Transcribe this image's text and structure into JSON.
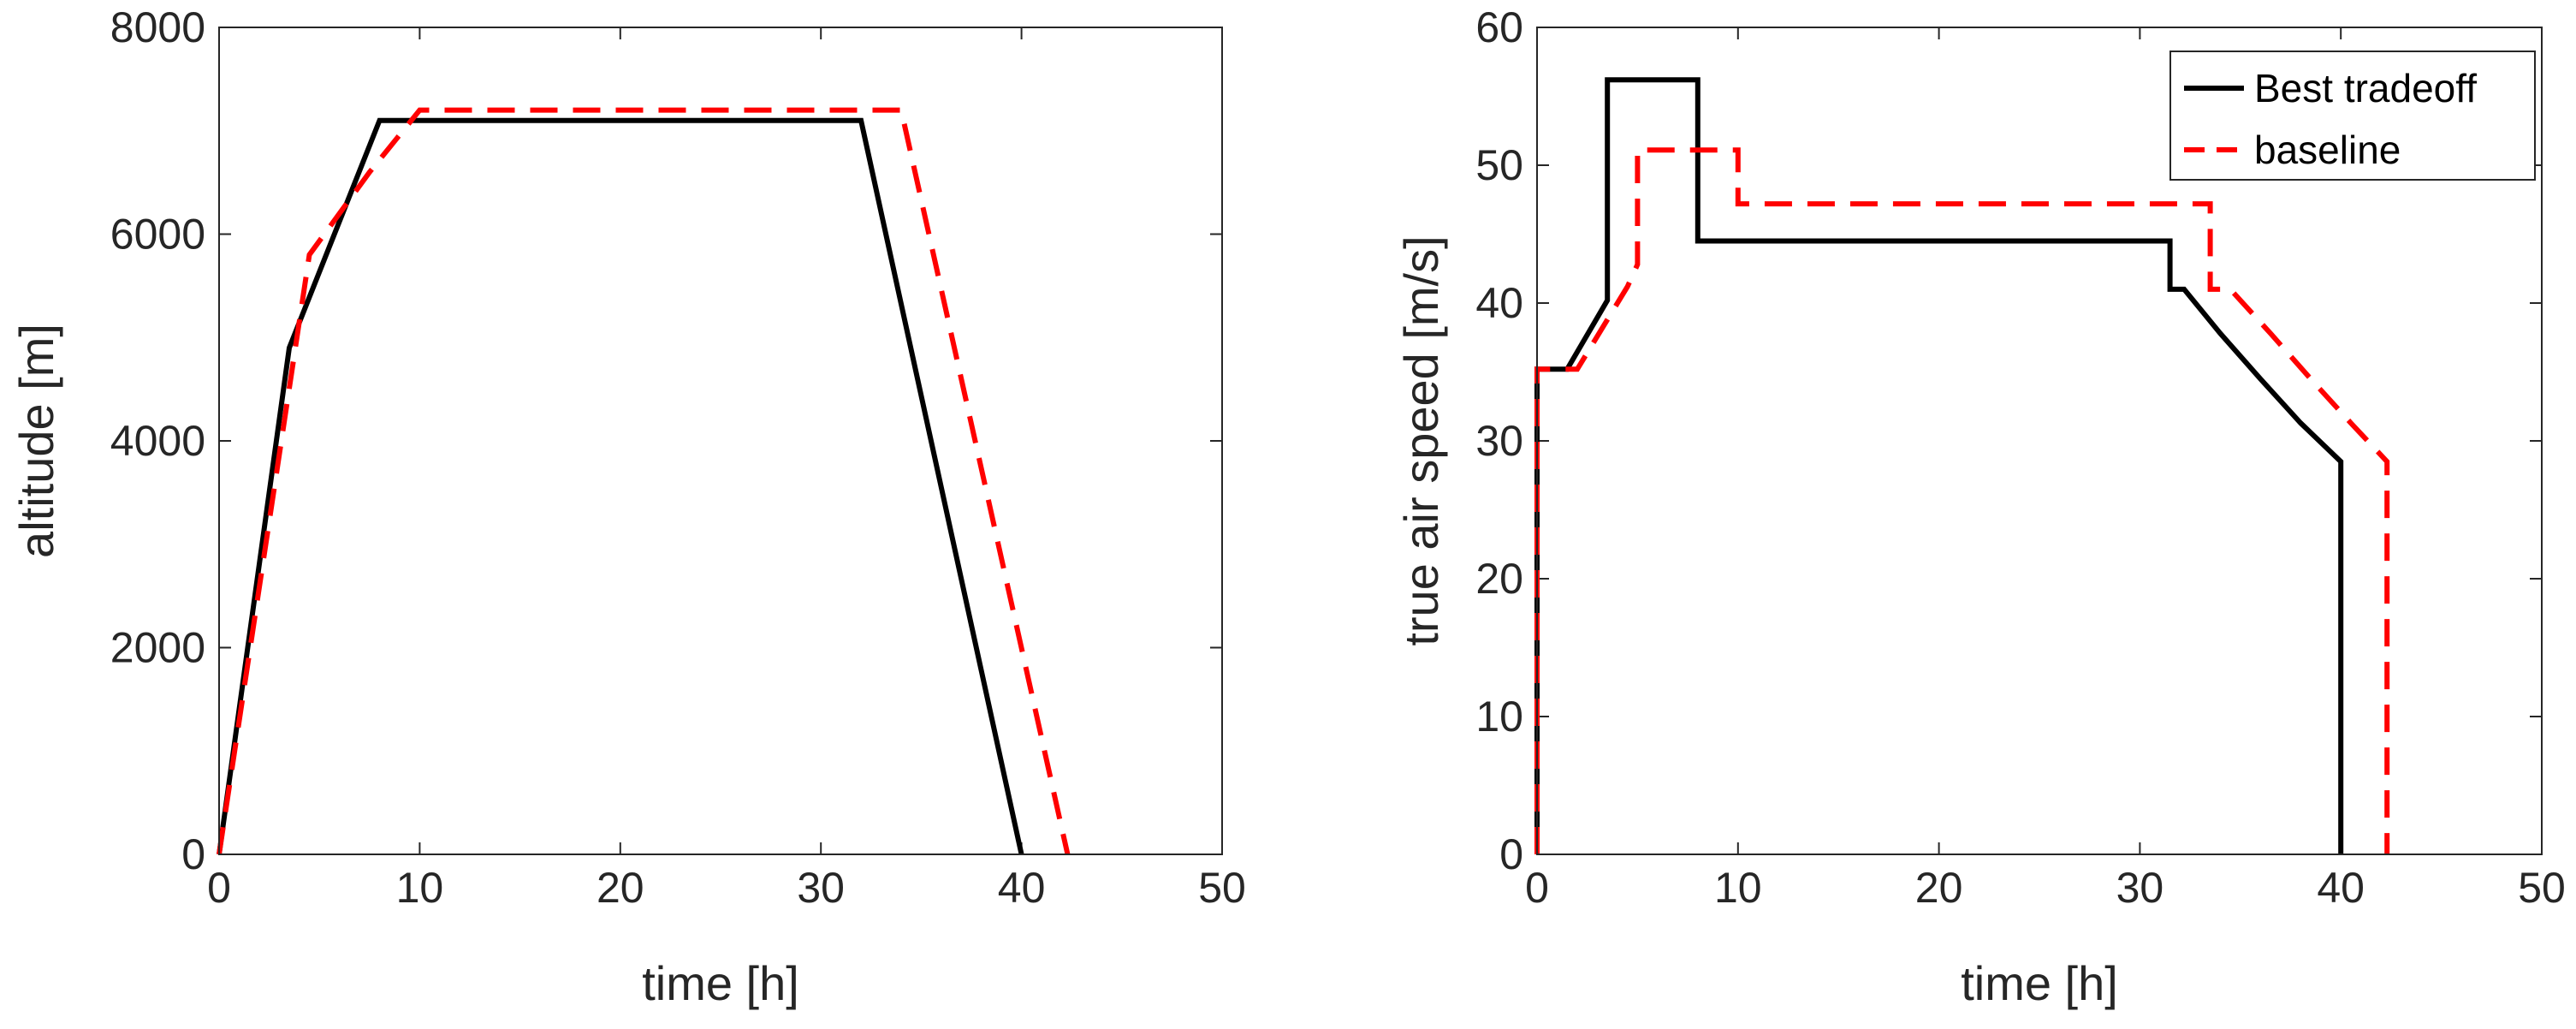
{
  "chart_data": [
    {
      "type": "line",
      "id": "altitude",
      "xlabel": "time [h]",
      "ylabel": "altitude [m]",
      "xlim": [
        0,
        50
      ],
      "ylim": [
        0,
        8000
      ],
      "xticks": [
        0,
        10,
        20,
        30,
        40,
        50
      ],
      "yticks": [
        0,
        2000,
        4000,
        6000,
        8000
      ],
      "series": [
        {
          "name": "Best tradeoff",
          "color": "#000000",
          "dash": "solid",
          "x": [
            0,
            3.5,
            8,
            32,
            40
          ],
          "y": [
            0,
            4900,
            7100,
            7100,
            0
          ]
        },
        {
          "name": "baseline",
          "color": "#ff0000",
          "dash": "dashed",
          "x": [
            0,
            4.5,
            7.5,
            10,
            34,
            42.3
          ],
          "y": [
            0,
            5800,
            6600,
            7200,
            7200,
            0
          ]
        }
      ]
    },
    {
      "type": "line",
      "id": "airspeed",
      "xlabel": "time [h]",
      "ylabel": "true air speed [m/s]",
      "xlim": [
        0,
        50
      ],
      "ylim": [
        0,
        60
      ],
      "xticks": [
        0,
        10,
        20,
        30,
        40,
        50
      ],
      "yticks": [
        0,
        10,
        20,
        30,
        40,
        50,
        60
      ],
      "legend": {
        "location": "top-right",
        "entries": [
          "Best tradeoff",
          "baseline"
        ]
      },
      "series": [
        {
          "name": "Best tradeoff",
          "color": "#000000",
          "dash": "solid",
          "x": [
            0,
            0,
            1.5,
            3.5,
            3.5,
            8,
            8,
            31.5,
            31.5,
            32.2,
            34,
            36,
            38,
            40,
            40
          ],
          "y": [
            0,
            35.2,
            35.2,
            40.2,
            56.2,
            56.2,
            44.5,
            44.5,
            41,
            41,
            37.8,
            34.5,
            31.3,
            28.5,
            0
          ]
        },
        {
          "name": "baseline",
          "color": "#ff0000",
          "dash": "dashed",
          "x": [
            0,
            0,
            2,
            4.5,
            5,
            5,
            10,
            10,
            33.5,
            33.5,
            34.5,
            36.5,
            38.5,
            40.5,
            42.3,
            42.3
          ],
          "y": [
            0,
            35.2,
            35.2,
            41.2,
            42.8,
            51.1,
            51.1,
            47.2,
            47.2,
            41,
            41,
            37.8,
            34.5,
            31.3,
            28.5,
            0
          ]
        }
      ]
    }
  ]
}
